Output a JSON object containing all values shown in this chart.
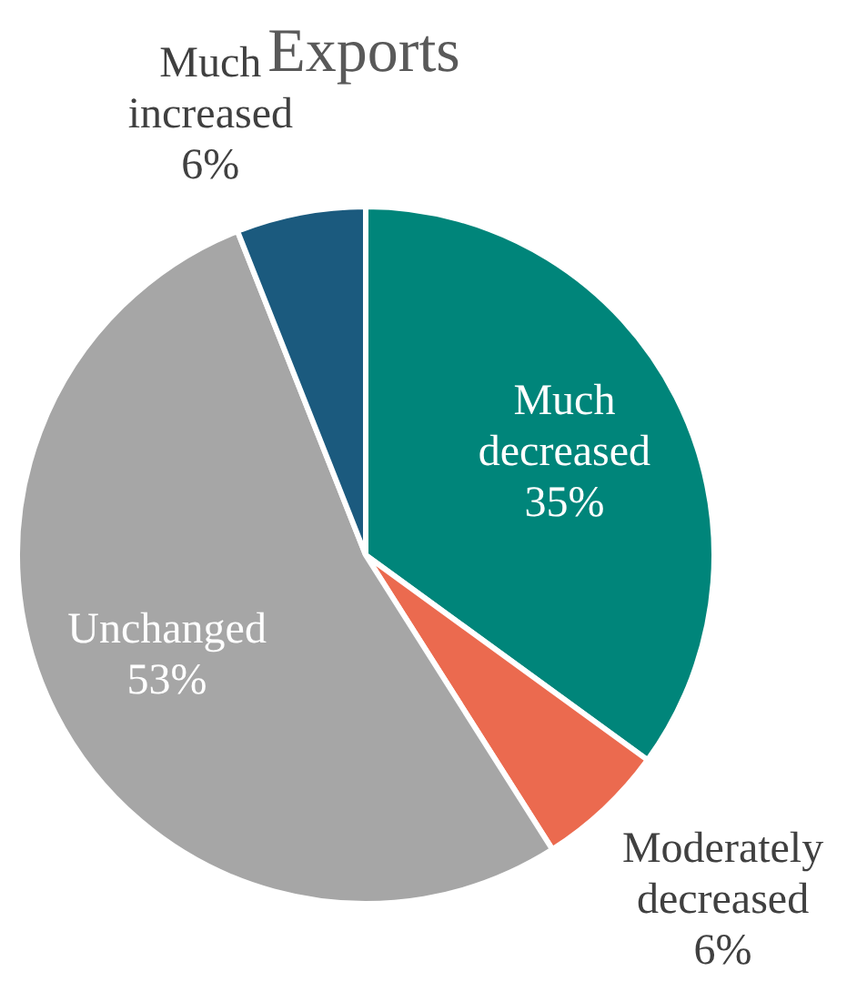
{
  "chart_data": {
    "type": "pie",
    "title": "Exports",
    "categories": [
      "Much decreased",
      "Moderately decreased",
      "Unchanged",
      "Much increased"
    ],
    "values": [
      35,
      6,
      53,
      6
    ],
    "colors": [
      "#00857a",
      "#eb6a4f",
      "#a6a6a6",
      "#1b5a7e"
    ],
    "value_labels": [
      "35%",
      "6%",
      "53%",
      "6%"
    ],
    "legend": false
  }
}
